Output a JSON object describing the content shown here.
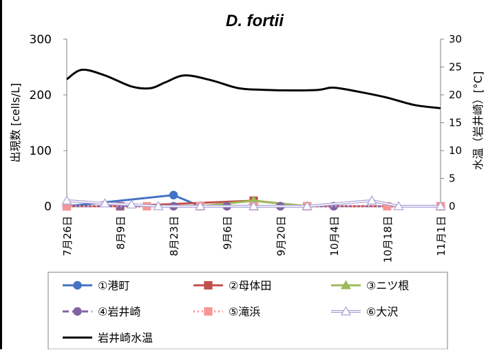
{
  "chart_data": {
    "type": "line",
    "title": "D. fortii",
    "ylabel_left": "出現数 [cells/L]",
    "ylabel_right": "水温（岩井崎）[°C]",
    "y_left": {
      "min": 0,
      "max": 300,
      "ticks": [
        0,
        100,
        200,
        300
      ]
    },
    "y_right": {
      "min": 0,
      "max": 30,
      "ticks": [
        0,
        5,
        10,
        15,
        20,
        25,
        30
      ]
    },
    "x_ticks": [
      "7月26日",
      "8月9日",
      "8月23日",
      "9月6日",
      "9月20日",
      "10月4日",
      "10月18日",
      "11月1日"
    ],
    "x_domain": [
      0,
      98
    ],
    "series": [
      {
        "name": "①港町",
        "color": "#4472c4",
        "marker": "circle",
        "dash": "none",
        "x": [
          0,
          28,
          35,
          42,
          56,
          98
        ],
        "y": [
          0,
          20,
          0,
          0,
          0,
          0
        ]
      },
      {
        "name": "②母体田",
        "color": "#c0504d",
        "marker": "square",
        "dash": "none",
        "x": [
          0,
          14,
          49,
          63,
          98
        ],
        "y": [
          0,
          0,
          10,
          0,
          0
        ]
      },
      {
        "name": "③ニツ根",
        "color": "#9bbb59",
        "marker": "triangle",
        "dash": "none",
        "x": [
          35,
          49,
          63
        ],
        "y": [
          0,
          10,
          0
        ]
      },
      {
        "name": "④岩井崎",
        "color": "#8064a2",
        "marker": "circle",
        "dash": "dashed",
        "x": [
          0,
          14,
          28,
          42,
          56,
          70,
          98
        ],
        "y": [
          0,
          0,
          0,
          0,
          0,
          0,
          0
        ]
      },
      {
        "name": "⑤滝浜",
        "color": "#f79696",
        "marker": "square",
        "dash": "dotted",
        "x": [
          0,
          21,
          35,
          49,
          63,
          84,
          98
        ],
        "y": [
          0,
          0,
          0,
          0,
          0,
          0,
          0
        ]
      },
      {
        "name": "⑥大沢",
        "color": "#a9a1d6",
        "marker": "triangle",
        "dash": "double",
        "x": [
          0,
          10,
          17,
          24,
          35,
          49,
          63,
          80,
          87,
          98
        ],
        "y": [
          10,
          5,
          3,
          0,
          0,
          0,
          0,
          10,
          0,
          0
        ]
      },
      {
        "name": "岩井崎水温",
        "color": "#000000",
        "marker": "none",
        "dash": "none",
        "axis": "right",
        "x": [
          0,
          4,
          10,
          17,
          22,
          26,
          31,
          38,
          45,
          52,
          59,
          66,
          70,
          77,
          84,
          91,
          98
        ],
        "y": [
          22.8,
          24.5,
          23.5,
          21.5,
          21.2,
          22.3,
          23.5,
          22.6,
          21.2,
          20.9,
          20.8,
          20.9,
          21.3,
          20.5,
          19.5,
          18.2,
          17.6
        ]
      }
    ]
  }
}
